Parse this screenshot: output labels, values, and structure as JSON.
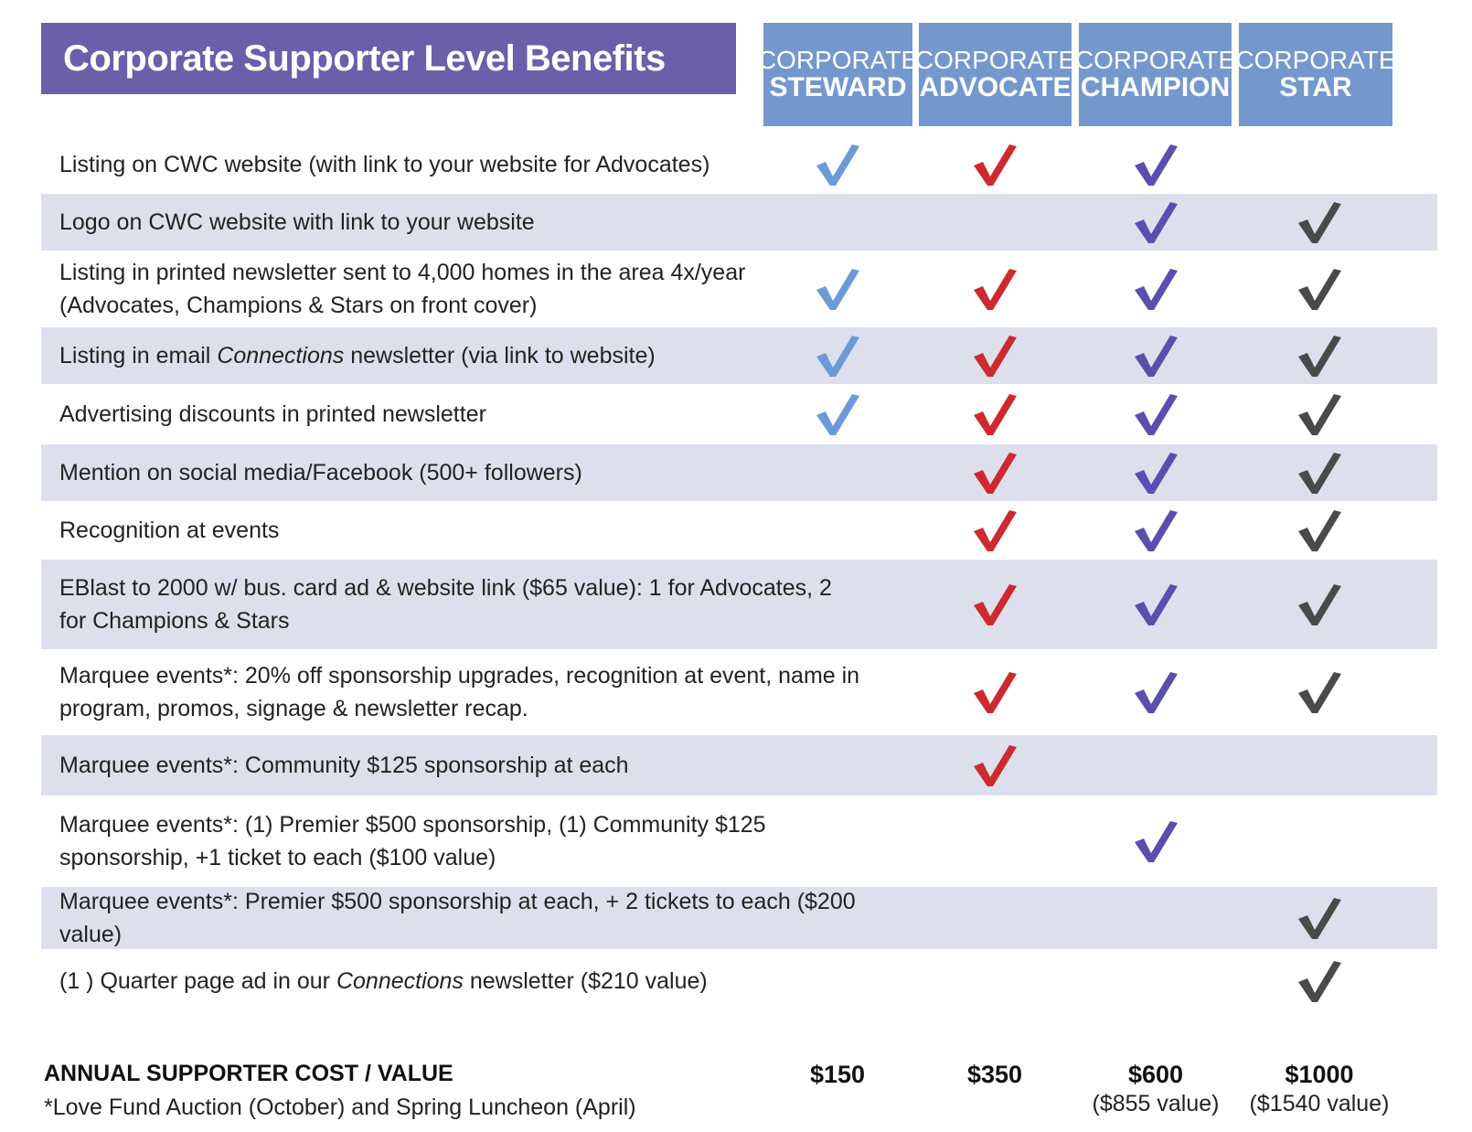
{
  "title": "Corporate Supporter Level Benefits",
  "levels": [
    {
      "top": "CORPORATE",
      "bottom": "STEWARD",
      "check_color": "#6b9bd6"
    },
    {
      "top": "CORPORATE",
      "bottom": "ADVOCATE",
      "check_color": "#cc2a2e"
    },
    {
      "top": "CORPORATE",
      "bottom": "CHAMPION",
      "check_color": "#5a4fae"
    },
    {
      "top": "CORPORATE",
      "bottom": "STAR",
      "check_color": "#4a4a4a"
    }
  ],
  "benefits": [
    {
      "parts": [
        {
          "t": "Listing on CWC website (with link to your website for Advocates)"
        }
      ],
      "checks": [
        true,
        true,
        true,
        false
      ]
    },
    {
      "parts": [
        {
          "t": "Logo on CWC website with link to your website"
        }
      ],
      "checks": [
        false,
        false,
        true,
        true
      ]
    },
    {
      "parts": [
        {
          "t": "Listing in printed newsletter sent to 4,000 homes in the area 4x/year (Advocates, Champions & Stars on front cover)"
        }
      ],
      "checks": [
        true,
        true,
        true,
        true
      ]
    },
    {
      "parts": [
        {
          "t": "Listing in email "
        },
        {
          "t": "Connections",
          "i": true
        },
        {
          "t": " newsletter (via link to website)"
        }
      ],
      "checks": [
        true,
        true,
        true,
        true
      ]
    },
    {
      "parts": [
        {
          "t": "Advertising discounts in printed newsletter"
        }
      ],
      "checks": [
        true,
        true,
        true,
        true
      ]
    },
    {
      "parts": [
        {
          "t": "Mention on social media/Facebook (500+ followers)"
        }
      ],
      "checks": [
        false,
        true,
        true,
        true
      ]
    },
    {
      "parts": [
        {
          "t": "Recognition at events"
        }
      ],
      "checks": [
        false,
        true,
        true,
        true
      ]
    },
    {
      "parts": [
        {
          "t": "EBlast to 2000 w/ bus. card ad & website link ($65 value): 1 for Advocates, 2 for Champions & Stars"
        }
      ],
      "checks": [
        false,
        true,
        true,
        true
      ]
    },
    {
      "parts": [
        {
          "t": "Marquee events*: 20% off sponsorship upgrades, recognition at event, name in program, promos, signage & newsletter recap."
        }
      ],
      "checks": [
        false,
        true,
        true,
        true
      ]
    },
    {
      "parts": [
        {
          "t": "Marquee events*: Community $125 sponsorship at each"
        }
      ],
      "checks": [
        false,
        true,
        false,
        false
      ]
    },
    {
      "parts": [
        {
          "t": "Marquee events*: (1) Premier $500 sponsorship, (1) Community $125 sponsorship, +1 ticket to each ($100 value)"
        }
      ],
      "checks": [
        false,
        false,
        true,
        false
      ]
    },
    {
      "parts": [
        {
          "t": "Marquee events*: Premier $500 sponsorship at each, + 2 tickets to each ($200 value)"
        }
      ],
      "checks": [
        false,
        false,
        false,
        true
      ]
    },
    {
      "parts": [
        {
          "t": "(1 ) Quarter page ad in our "
        },
        {
          "t": "Connections",
          "i": true
        },
        {
          "t": " newsletter ($210 value)"
        }
      ],
      "checks": [
        false,
        false,
        false,
        true
      ]
    }
  ],
  "footer": {
    "label": "ANNUAL SUPPORTER COST / VALUE",
    "note": "*Love Fund Auction (October) and Spring Luncheon (April)",
    "prices": [
      {
        "cost": "$150",
        "value": ""
      },
      {
        "cost": "$350",
        "value": ""
      },
      {
        "cost": "$600",
        "value": "($855 value)"
      },
      {
        "cost": "$1000",
        "value": "($1540 value)"
      }
    ]
  },
  "colors": {
    "title_bg": "#6a5fa8",
    "header_bg": "#7598cc",
    "shaded_row": "#dde0ec"
  }
}
